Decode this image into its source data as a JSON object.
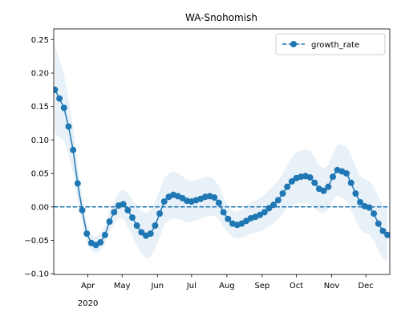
{
  "chart_data": {
    "type": "line",
    "title": "WA-Snohomish",
    "x": [
      62,
      66,
      70,
      74,
      78,
      82,
      86,
      90,
      94,
      98,
      102,
      106,
      110,
      114,
      118,
      122,
      126,
      130,
      134,
      138,
      142,
      146,
      150,
      154,
      158,
      162,
      166,
      170,
      174,
      178,
      182,
      186,
      190,
      194,
      198,
      202,
      206,
      210,
      214,
      218,
      222,
      226,
      230,
      234,
      238,
      242,
      246,
      250,
      254,
      258,
      262,
      266,
      270,
      274,
      278,
      282,
      286,
      290,
      294,
      298,
      302,
      306,
      310,
      314,
      318,
      322,
      326,
      330,
      334,
      338,
      342,
      346,
      350,
      354
    ],
    "series": [
      {
        "name": "growth_rate",
        "color": "#1f77b4",
        "values": [
          0.175,
          0.162,
          0.148,
          0.12,
          0.085,
          0.035,
          -0.005,
          -0.04,
          -0.054,
          -0.057,
          -0.053,
          -0.042,
          -0.022,
          -0.008,
          0.002,
          0.004,
          -0.005,
          -0.016,
          -0.028,
          -0.038,
          -0.043,
          -0.04,
          -0.028,
          -0.01,
          0.008,
          0.015,
          0.018,
          0.016,
          0.013,
          0.009,
          0.008,
          0.01,
          0.012,
          0.015,
          0.016,
          0.014,
          0.006,
          -0.008,
          -0.018,
          -0.025,
          -0.027,
          -0.025,
          -0.021,
          -0.017,
          -0.015,
          -0.012,
          -0.008,
          -0.002,
          0.003,
          0.01,
          0.02,
          0.03,
          0.038,
          0.043,
          0.045,
          0.046,
          0.044,
          0.036,
          0.027,
          0.024,
          0.03,
          0.045,
          0.055,
          0.053,
          0.05,
          0.036,
          0.02,
          0.007,
          0.001,
          -0.001,
          -0.01,
          -0.025,
          -0.036,
          -0.042
        ],
        "ci": [
          0.065,
          0.058,
          0.05,
          0.042,
          0.035,
          0.027,
          0.02,
          0.015,
          0.012,
          0.012,
          0.013,
          0.014,
          0.015,
          0.017,
          0.02,
          0.022,
          0.025,
          0.027,
          0.03,
          0.032,
          0.034,
          0.035,
          0.035,
          0.035,
          0.035,
          0.035,
          0.035,
          0.034,
          0.033,
          0.032,
          0.031,
          0.03,
          0.03,
          0.03,
          0.029,
          0.027,
          0.025,
          0.022,
          0.02,
          0.02,
          0.02,
          0.021,
          0.022,
          0.023,
          0.024,
          0.025,
          0.026,
          0.027,
          0.028,
          0.029,
          0.03,
          0.032,
          0.035,
          0.038,
          0.04,
          0.04,
          0.04,
          0.038,
          0.035,
          0.033,
          0.033,
          0.035,
          0.038,
          0.04,
          0.04,
          0.04,
          0.04,
          0.04,
          0.04,
          0.04,
          0.04,
          0.04,
          0.04,
          0.04
        ]
      }
    ],
    "hline": 0,
    "xlim": [
      61,
      356
    ],
    "xticks": [
      {
        "value": 91,
        "label": "Apr"
      },
      {
        "value": 121,
        "label": "May"
      },
      {
        "value": 152,
        "label": "Jun"
      },
      {
        "value": 182,
        "label": "Jul"
      },
      {
        "value": 213,
        "label": "Aug"
      },
      {
        "value": 244,
        "label": "Sep"
      },
      {
        "value": 274,
        "label": "Oct"
      },
      {
        "value": 305,
        "label": "Nov"
      },
      {
        "value": 335,
        "label": "Dec"
      }
    ],
    "xtick_year": "2020",
    "ylim": [
      -0.101,
      0.266
    ],
    "yticks": [
      {
        "value": -0.1,
        "label": "−0.10"
      },
      {
        "value": -0.05,
        "label": "−0.05"
      },
      {
        "value": 0,
        "label": "0.00"
      },
      {
        "value": 0.05,
        "label": "0.05"
      },
      {
        "value": 0.1,
        "label": "0.10"
      },
      {
        "value": 0.15,
        "label": "0.15"
      },
      {
        "value": 0.2,
        "label": "0.20"
      },
      {
        "value": 0.25,
        "label": "0.25"
      }
    ],
    "legend": "upper right"
  }
}
